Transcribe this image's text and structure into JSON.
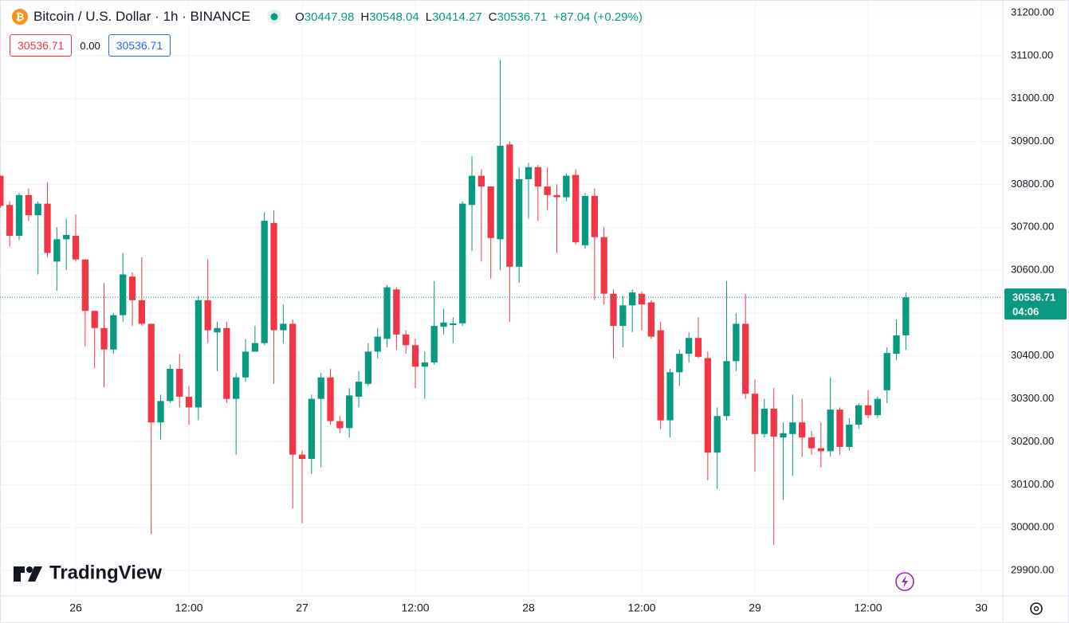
{
  "header": {
    "symbol": "Bitcoin / U.S. Dollar · 1h · BINANCE",
    "ohlc_labels": [
      "O",
      "H",
      "L",
      "C"
    ],
    "change": "+87.04 (+0.29%)",
    "sell": "30536.71",
    "spread": "0.00",
    "buy": "30536.71",
    "countdown": "04:06",
    "logo": "TradingView"
  },
  "chart_data": {
    "type": "candlestick",
    "up_color": "#089981",
    "down_color": "#f23645",
    "grid": true,
    "xlim": [
      -0.03,
      106.28
    ],
    "xticks": [
      {
        "value": 8,
        "label": "26"
      },
      {
        "value": 20,
        "label": "12:00"
      },
      {
        "value": 32,
        "label": "27"
      },
      {
        "value": 44,
        "label": "12:00"
      },
      {
        "value": 56,
        "label": "28"
      },
      {
        "value": 68,
        "label": "12:00"
      },
      {
        "value": 80,
        "label": "29"
      },
      {
        "value": 92,
        "label": "12:00"
      },
      {
        "value": 104,
        "label": "30"
      }
    ],
    "ylim": [
      29840.7,
      31229.7
    ],
    "yticks": [
      {
        "value": 29900,
        "label": "29900.00"
      },
      {
        "value": 30000,
        "label": "30000.00"
      },
      {
        "value": 30100,
        "label": "30100.00"
      },
      {
        "value": 30200,
        "label": "30200.00"
      },
      {
        "value": 30300,
        "label": "30300.00"
      },
      {
        "value": 30400,
        "label": "30400.00"
      },
      {
        "value": 30500,
        "label": "30500.00"
      },
      {
        "value": 30600,
        "label": "30600.00"
      },
      {
        "value": 30700,
        "label": "30700.00"
      },
      {
        "value": 30800,
        "label": "30800.00"
      },
      {
        "value": 30900,
        "label": "30900.00"
      },
      {
        "value": 31000,
        "label": "31000.00"
      },
      {
        "value": 31100,
        "label": "31100.00"
      },
      {
        "value": 31200,
        "label": "31200.00"
      }
    ],
    "open": [
      30820,
      30752,
      30680,
      30775,
      30728,
      30755,
      30620,
      30672,
      30680,
      30625,
      30505,
      30465,
      30415,
      30495,
      30585,
      30530,
      30475,
      30245,
      30295,
      30370,
      30305,
      30280,
      30530,
      30455,
      30465,
      30300,
      30350,
      30410,
      30430,
      30710,
      30460,
      30475,
      30170,
      30160,
      30300,
      30350,
      30248,
      30232,
      30305,
      30335,
      30410,
      30440,
      30555,
      30450,
      30425,
      30375,
      30385,
      30468,
      30472,
      30476,
      30752,
      30820,
      30795,
      30672,
      30893,
      30608,
      30812,
      30840,
      30795,
      30775,
      30770,
      30822,
      30658,
      30773,
      30677,
      30545,
      30470,
      30518,
      30545,
      30525,
      30460,
      30250,
      30362,
      30405,
      30442,
      30395,
      30175,
      30260,
      30388,
      30475,
      30312,
      30218,
      30277,
      30210,
      30218,
      30245,
      30210,
      30185,
      30178,
      30275,
      30188,
      30240,
      30285,
      30262,
      30320,
      30405,
      30447.98
    ],
    "high": [
      30820,
      30760,
      30780,
      30790,
      30760,
      30805,
      30700,
      30720,
      30730,
      30625,
      30505,
      30570,
      30500,
      30640,
      30595,
      30630,
      30475,
      30310,
      30380,
      30405,
      30330,
      30540,
      30625,
      30480,
      30480,
      30360,
      30440,
      30470,
      30735,
      30740,
      30520,
      30485,
      30180,
      30310,
      30360,
      30370,
      30260,
      30325,
      30365,
      30430,
      30465,
      30565,
      30560,
      30460,
      30440,
      30410,
      30575,
      30510,
      30490,
      30760,
      30865,
      30835,
      30795,
      31090,
      30900,
      30840,
      30850,
      30845,
      30840,
      30800,
      30825,
      30835,
      30780,
      30790,
      30700,
      30555,
      30540,
      30555,
      30550,
      30530,
      30480,
      30370,
      30415,
      30455,
      30490,
      30410,
      30280,
      30575,
      30500,
      30545,
      30345,
      30300,
      30325,
      30245,
      30310,
      30300,
      30225,
      30245,
      30350,
      30280,
      30255,
      30290,
      30320,
      30305,
      30420,
      30485,
      30548.04
    ],
    "low": [
      30745,
      30655,
      30670,
      30715,
      30590,
      30630,
      30552,
      30600,
      30620,
      30422,
      30372,
      30327,
      30405,
      30480,
      30470,
      30470,
      29985,
      30205,
      30290,
      30280,
      30240,
      30250,
      30430,
      30365,
      30290,
      30170,
      30340,
      30410,
      30425,
      30335,
      30430,
      30045,
      30010,
      30125,
      30140,
      30240,
      30220,
      30210,
      30280,
      30330,
      30395,
      30420,
      30415,
      30405,
      30325,
      30300,
      30380,
      30450,
      30430,
      30470,
      30645,
      30620,
      30580,
      30600,
      30480,
      30570,
      30720,
      30715,
      30740,
      30640,
      30760,
      30660,
      30650,
      30530,
      30520,
      30395,
      30420,
      30455,
      30460,
      30440,
      30230,
      30210,
      30330,
      30385,
      30395,
      30110,
      30090,
      30250,
      30365,
      30300,
      30130,
      30210,
      29960,
      30065,
      30120,
      30165,
      30170,
      30140,
      30165,
      30170,
      30180,
      30230,
      30255,
      30255,
      30290,
      30390,
      30414.27
    ],
    "close": [
      30750,
      30680,
      30775,
      30728,
      30755,
      30640,
      30672,
      30682,
      30625,
      30505,
      30465,
      30415,
      30495,
      30590,
      30530,
      30475,
      30245,
      30295,
      30370,
      30305,
      30280,
      30530,
      30460,
      30465,
      30300,
      30350,
      30410,
      30430,
      30715,
      30460,
      30475,
      30170,
      30160,
      30300,
      30350,
      30248,
      30232,
      30308,
      30340,
      30410,
      30445,
      30560,
      30450,
      30425,
      30375,
      30385,
      30470,
      30478,
      30476,
      30755,
      30820,
      30795,
      30675,
      30890,
      30608,
      30812,
      30840,
      30795,
      30775,
      30770,
      30820,
      30665,
      30773,
      30677,
      30545,
      30470,
      30518,
      30548,
      30520,
      30445,
      30250,
      30362,
      30405,
      30442,
      30398,
      30175,
      30260,
      30388,
      30475,
      30312,
      30218,
      30277,
      30212,
      30220,
      30245,
      30210,
      30185,
      30178,
      30275,
      30188,
      30240,
      30285,
      30262,
      30300,
      30407,
      30448,
      30536.71
    ]
  }
}
